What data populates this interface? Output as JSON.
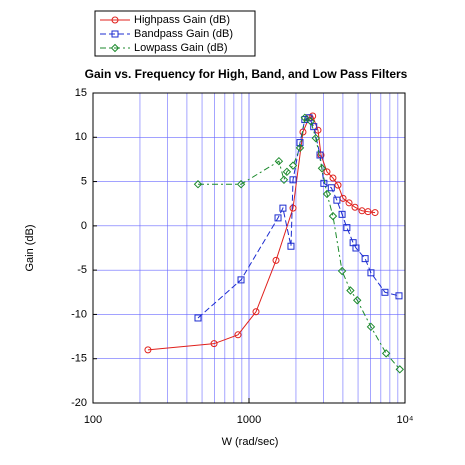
{
  "chart_data": {
    "type": "line",
    "title": "Gain vs. Frequency for High, Band, and Low Pass Filters",
    "x_label": "W (rad/sec)",
    "y_label": "Gain (dB)",
    "xscale": "log",
    "xlim": [
      100,
      10000
    ],
    "xticks": [
      100,
      1000,
      {
        "value": 10000,
        "label": "10⁴"
      }
    ],
    "ylim": [
      -20,
      15
    ],
    "yticks": [
      -20,
      -15,
      -10,
      -5,
      0,
      5,
      10,
      15
    ],
    "grid": true,
    "legend": "top-left",
    "series": [
      {
        "name": "Highpass Gain (dB)",
        "color": "#e0201c",
        "marker": "circle",
        "dash": "solid",
        "x": [
          225,
          597,
          850,
          1109,
          1490,
          1915,
          2218,
          2425,
          2560,
          2768,
          2895,
          3162,
          3454,
          3720,
          4008,
          4378,
          4780,
          5300,
          5792,
          6425
        ],
        "values": [
          -14.0,
          -13.3,
          -12.3,
          -9.7,
          -3.9,
          2.0,
          10.6,
          12.2,
          12.4,
          10.8,
          8.0,
          6.1,
          5.4,
          4.6,
          3.1,
          2.6,
          2.1,
          1.7,
          1.6,
          1.5
        ]
      },
      {
        "name": "Bandpass Gain (dB)",
        "color": "#1c2cd0",
        "marker": "square",
        "dash": "dashed",
        "x": [
          471,
          889,
          1535,
          1650,
          1858,
          1915,
          2123,
          2280,
          2425,
          2600,
          2852,
          3020,
          3370,
          3660,
          3950,
          4240,
          4650,
          4850,
          5550,
          6050,
          7440,
          9150
        ],
        "values": [
          -10.4,
          -6.1,
          0.9,
          2.0,
          -2.3,
          5.2,
          9.4,
          12.0,
          12.2,
          11.2,
          8.0,
          4.8,
          4.3,
          2.9,
          1.3,
          -0.2,
          -1.9,
          -2.5,
          -3.7,
          -5.3,
          -7.5,
          -7.9
        ]
      },
      {
        "name": "Lowpass Gain (dB)",
        "color": "#1c8a2c",
        "marker": "diamond",
        "dash": "dashdot",
        "x": [
          471,
          889,
          1555,
          1676,
          1750,
          1915,
          2123,
          2280,
          2490,
          2680,
          2935,
          3162,
          3454,
          3950,
          4470,
          4940,
          6050,
          7570,
          9260
        ],
        "values": [
          4.7,
          4.7,
          7.3,
          5.2,
          6.1,
          6.8,
          8.8,
          12.2,
          11.8,
          9.9,
          6.5,
          3.6,
          1.1,
          -5.1,
          -7.3,
          -8.4,
          -11.4,
          -14.4,
          -16.2
        ]
      }
    ]
  }
}
